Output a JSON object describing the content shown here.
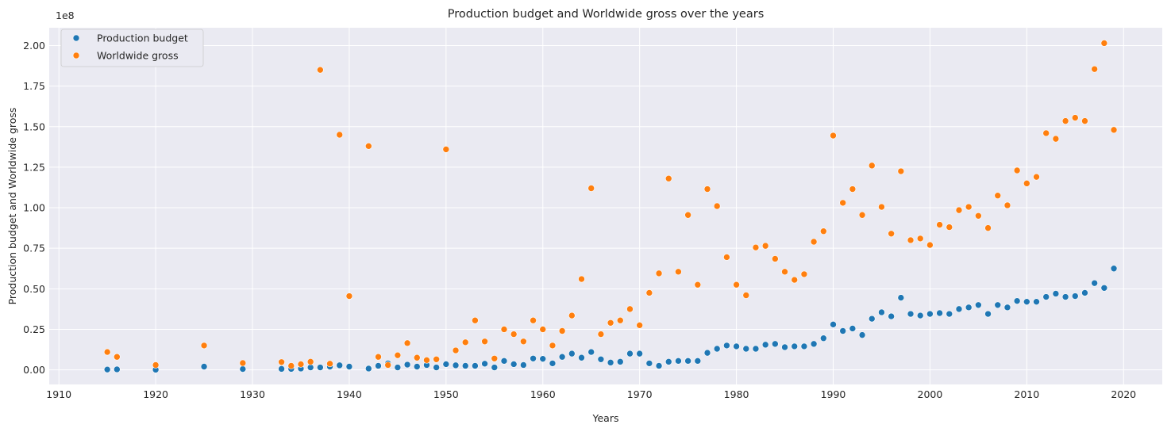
{
  "chart_data": {
    "type": "scatter",
    "title": "Production budget and Worldwide gross over the years",
    "xlabel": "Years",
    "ylabel": "Production budget and Worldwide gross",
    "y_scale_label": "1e8",
    "xlim": [
      1909,
      2024
    ],
    "ylim": [
      -9000000,
      211000000
    ],
    "x_ticks": [
      1910,
      1920,
      1930,
      1940,
      1950,
      1960,
      1970,
      1980,
      1990,
      2000,
      2010,
      2020
    ],
    "y_ticks": [
      0,
      25000000,
      50000000,
      75000000,
      100000000,
      125000000,
      150000000,
      175000000,
      200000000
    ],
    "y_tick_labels": [
      "0.00",
      "0.25",
      "0.50",
      "0.75",
      "1.00",
      "1.25",
      "1.50",
      "1.75",
      "2.00"
    ],
    "grid": true,
    "legend_position": "top-left",
    "colors": {
      "background": "#eaeaf2",
      "grid": "#ffffff",
      "budget": "#1f77b4",
      "gross": "#ff7f0e"
    },
    "series": [
      {
        "name": "Production budget",
        "points": [
          [
            1915,
            200000
          ],
          [
            1916,
            300000
          ],
          [
            1920,
            100000
          ],
          [
            1925,
            2000000
          ],
          [
            1929,
            500000
          ],
          [
            1933,
            600000
          ],
          [
            1934,
            600000
          ],
          [
            1935,
            800000
          ],
          [
            1936,
            1500000
          ],
          [
            1937,
            1500000
          ],
          [
            1938,
            2000000
          ],
          [
            1939,
            2800000
          ],
          [
            1940,
            2000000
          ],
          [
            1942,
            800000
          ],
          [
            1943,
            2500000
          ],
          [
            1944,
            4000000
          ],
          [
            1945,
            1500000
          ],
          [
            1946,
            3200000
          ],
          [
            1947,
            2000000
          ],
          [
            1948,
            3000000
          ],
          [
            1949,
            1500000
          ],
          [
            1950,
            3500000
          ],
          [
            1951,
            2800000
          ],
          [
            1952,
            2500000
          ],
          [
            1953,
            2500000
          ],
          [
            1954,
            3800000
          ],
          [
            1955,
            1500000
          ],
          [
            1956,
            5500000
          ],
          [
            1957,
            3500000
          ],
          [
            1958,
            3000000
          ],
          [
            1959,
            7000000
          ],
          [
            1960,
            6800000
          ],
          [
            1961,
            4000000
          ],
          [
            1962,
            8000000
          ],
          [
            1963,
            10000000
          ],
          [
            1964,
            7500000
          ],
          [
            1965,
            11000000
          ],
          [
            1966,
            6500000
          ],
          [
            1967,
            4500000
          ],
          [
            1968,
            5000000
          ],
          [
            1969,
            10000000
          ],
          [
            1970,
            10000000
          ],
          [
            1971,
            4000000
          ],
          [
            1972,
            2500000
          ],
          [
            1973,
            5000000
          ],
          [
            1974,
            5500000
          ],
          [
            1975,
            5500000
          ],
          [
            1976,
            5500000
          ],
          [
            1977,
            10500000
          ],
          [
            1978,
            13000000
          ],
          [
            1979,
            15000000
          ],
          [
            1980,
            14500000
          ],
          [
            1981,
            13000000
          ],
          [
            1982,
            13000000
          ],
          [
            1983,
            15500000
          ],
          [
            1984,
            16000000
          ],
          [
            1985,
            14000000
          ],
          [
            1986,
            14500000
          ],
          [
            1987,
            14500000
          ],
          [
            1988,
            16000000
          ],
          [
            1989,
            19500000
          ],
          [
            1990,
            28000000
          ],
          [
            1991,
            24000000
          ],
          [
            1992,
            25500000
          ],
          [
            1993,
            21500000
          ],
          [
            1994,
            31500000
          ],
          [
            1995,
            35500000
          ],
          [
            1996,
            33000000
          ],
          [
            1997,
            44500000
          ],
          [
            1998,
            34500000
          ],
          [
            1999,
            33500000
          ],
          [
            2000,
            34500000
          ],
          [
            2001,
            35000000
          ],
          [
            2002,
            34500000
          ],
          [
            2003,
            37500000
          ],
          [
            2004,
            38500000
          ],
          [
            2005,
            40000000
          ],
          [
            2006,
            34500000
          ],
          [
            2007,
            40000000
          ],
          [
            2008,
            38500000
          ],
          [
            2009,
            42500000
          ],
          [
            2010,
            42000000
          ],
          [
            2011,
            42000000
          ],
          [
            2012,
            45000000
          ],
          [
            2013,
            47000000
          ],
          [
            2014,
            45000000
          ],
          [
            2015,
            45500000
          ],
          [
            2016,
            47500000
          ],
          [
            2017,
            53500000
          ],
          [
            2018,
            50500000
          ],
          [
            2019,
            62500000
          ]
        ]
      },
      {
        "name": "Worldwide gross",
        "points": [
          [
            1915,
            11000000
          ],
          [
            1916,
            8000000
          ],
          [
            1920,
            3000000
          ],
          [
            1925,
            15000000
          ],
          [
            1929,
            4200000
          ],
          [
            1933,
            4800000
          ],
          [
            1934,
            2500000
          ],
          [
            1935,
            3500000
          ],
          [
            1936,
            5000000
          ],
          [
            1937,
            185000000
          ],
          [
            1938,
            3800000
          ],
          [
            1939,
            145000000
          ],
          [
            1940,
            45500000
          ],
          [
            1942,
            138000000
          ],
          [
            1943,
            8000000
          ],
          [
            1944,
            3000000
          ],
          [
            1945,
            9000000
          ],
          [
            1946,
            16500000
          ],
          [
            1947,
            7500000
          ],
          [
            1948,
            6000000
          ],
          [
            1949,
            6500000
          ],
          [
            1950,
            136000000
          ],
          [
            1951,
            12000000
          ],
          [
            1952,
            17000000
          ],
          [
            1953,
            30500000
          ],
          [
            1954,
            17500000
          ],
          [
            1955,
            7000000
          ],
          [
            1956,
            25000000
          ],
          [
            1957,
            22000000
          ],
          [
            1958,
            17500000
          ],
          [
            1959,
            30500000
          ],
          [
            1960,
            25000000
          ],
          [
            1961,
            15000000
          ],
          [
            1962,
            24000000
          ],
          [
            1963,
            33500000
          ],
          [
            1964,
            56000000
          ],
          [
            1965,
            112000000
          ],
          [
            1966,
            22000000
          ],
          [
            1967,
            29000000
          ],
          [
            1968,
            30500000
          ],
          [
            1969,
            37500000
          ],
          [
            1970,
            27500000
          ],
          [
            1971,
            47500000
          ],
          [
            1972,
            59500000
          ],
          [
            1973,
            118000000
          ],
          [
            1974,
            60500000
          ],
          [
            1975,
            95500000
          ],
          [
            1976,
            52500000
          ],
          [
            1977,
            111500000
          ],
          [
            1978,
            101000000
          ],
          [
            1979,
            69500000
          ],
          [
            1980,
            52500000
          ],
          [
            1981,
            46000000
          ],
          [
            1982,
            75500000
          ],
          [
            1983,
            76500000
          ],
          [
            1984,
            68500000
          ],
          [
            1985,
            60500000
          ],
          [
            1986,
            55500000
          ],
          [
            1987,
            59000000
          ],
          [
            1988,
            79000000
          ],
          [
            1989,
            85500000
          ],
          [
            1990,
            144500000
          ],
          [
            1991,
            103000000
          ],
          [
            1992,
            111500000
          ],
          [
            1993,
            95500000
          ],
          [
            1994,
            126000000
          ],
          [
            1995,
            100500000
          ],
          [
            1996,
            84000000
          ],
          [
            1997,
            122500000
          ],
          [
            1998,
            80000000
          ],
          [
            1999,
            81000000
          ],
          [
            2000,
            77000000
          ],
          [
            2001,
            89500000
          ],
          [
            2002,
            88000000
          ],
          [
            2003,
            98500000
          ],
          [
            2004,
            100500000
          ],
          [
            2005,
            95000000
          ],
          [
            2006,
            87500000
          ],
          [
            2007,
            107500000
          ],
          [
            2008,
            101500000
          ],
          [
            2009,
            123000000
          ],
          [
            2010,
            115000000
          ],
          [
            2011,
            119000000
          ],
          [
            2012,
            146000000
          ],
          [
            2013,
            142500000
          ],
          [
            2014,
            153500000
          ],
          [
            2015,
            155500000
          ],
          [
            2016,
            153500000
          ],
          [
            2017,
            185500000
          ],
          [
            2018,
            201500000
          ],
          [
            2019,
            148000000
          ]
        ]
      }
    ]
  }
}
